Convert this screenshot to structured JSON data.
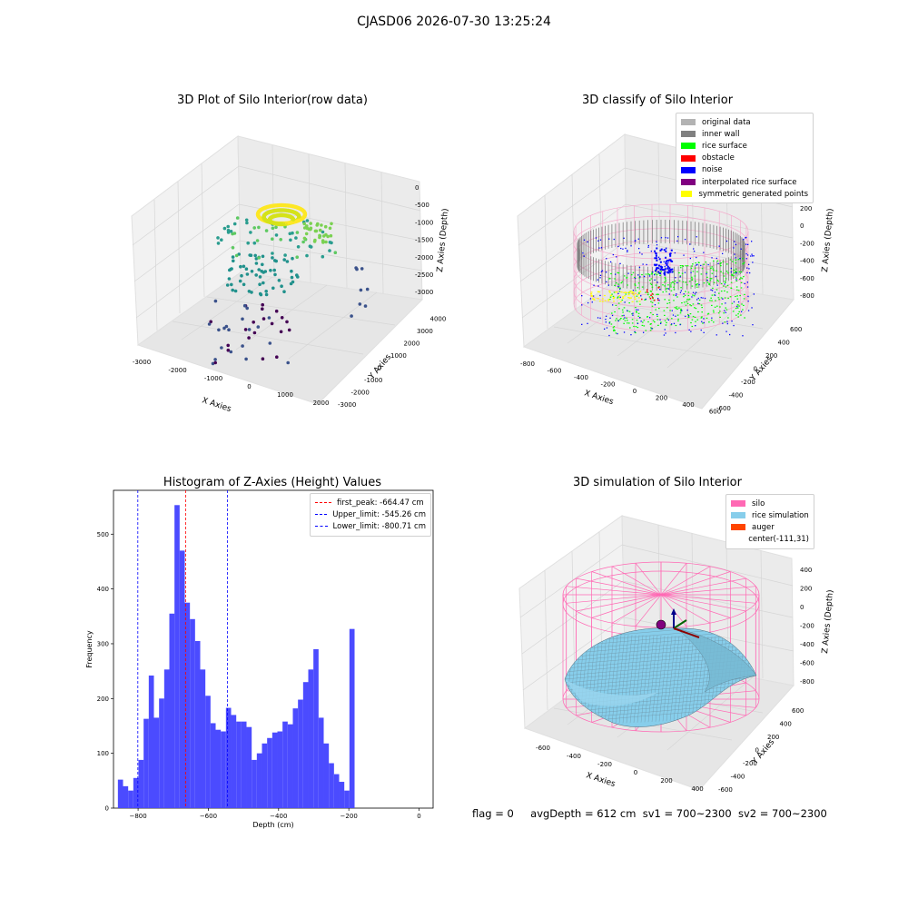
{
  "suptitle": "CJASD06 2026-07-30 13:25:24",
  "panels": {
    "raw": {
      "title": "3D Plot of Silo Interior(row data)",
      "xlabel": "X Axies",
      "ylabel": "Y Axies",
      "zlabel": "Z Axies (Depth)",
      "xticks": [
        "-3000",
        "-2000",
        "-1000",
        "0",
        "1000",
        "2000"
      ],
      "yticks": [
        "-3000",
        "-2000",
        "-1000",
        "0",
        "1000",
        "2000",
        "3000",
        "4000"
      ],
      "zticks": [
        "0",
        "-500",
        "-1000",
        "-1500",
        "-2000",
        "-2500",
        "-3000"
      ]
    },
    "classify": {
      "title": "3D classify of Silo Interior",
      "xlabel": "X Axies",
      "ylabel": "Y Axies",
      "zlabel": "Z Axies (Depth)",
      "xticks": [
        "-800",
        "-600",
        "-400",
        "-200",
        "0",
        "200",
        "400",
        "600"
      ],
      "yticks": [
        "-600",
        "-400",
        "-200",
        "0",
        "200",
        "400",
        "600"
      ],
      "zticks": [
        "200",
        "0",
        "-200",
        "-400",
        "-600",
        "-800"
      ],
      "legend": [
        {
          "label": "original data",
          "color": "#b3b3b3"
        },
        {
          "label": "inner wall",
          "color": "#808080"
        },
        {
          "label": "rice surface",
          "color": "#00ff00"
        },
        {
          "label": "obstacle",
          "color": "#ff0000"
        },
        {
          "label": "noise",
          "color": "#0000ff"
        },
        {
          "label": "interpolated rice surface",
          "color": "#800080"
        },
        {
          "label": "symmetric generated points",
          "color": "#ffff00"
        }
      ]
    },
    "histogram": {
      "title": "Histogram of Z-Axies (Height) Values",
      "legend": [
        {
          "label": "first_peak: -664.47 cm",
          "color": "#ff0000"
        },
        {
          "label": "Upper_limit: -545.26 cm",
          "color": "#0000ff"
        },
        {
          "label": "Lower_limit: -800.71 cm",
          "color": "#0000ff"
        }
      ]
    },
    "simulation": {
      "title": "3D simulation of Silo Interior",
      "xlabel": "X Axies",
      "ylabel": "Y Axies",
      "zlabel": "Z Axies (Depth)",
      "xticks": [
        "-600",
        "-400",
        "-200",
        "0",
        "200",
        "400"
      ],
      "yticks": [
        "-600",
        "-400",
        "-200",
        "0",
        "200",
        "400",
        "600"
      ],
      "zticks": [
        "400",
        "200",
        "0",
        "-200",
        "-400",
        "-600",
        "-800"
      ],
      "legend": [
        {
          "label": "silo",
          "color": "#ff69b4"
        },
        {
          "label": "rice simulation",
          "color": "#87ceeb"
        },
        {
          "label": "auger",
          "color": "#ff4500"
        },
        {
          "label": "center(-111,31)",
          "color": ""
        }
      ]
    }
  },
  "footer": {
    "flag": "flag = 0",
    "avg_depth": "avgDepth = 612 cm",
    "sv1": "sv1 = 700~2300",
    "sv2": "sv2 = 700~2300"
  },
  "chart_data": [
    {
      "type": "bar",
      "title": "Histogram of Z-Axies (Height) Values",
      "xlabel": "Depth (cm)",
      "ylabel": "Frequency",
      "xlim": [
        -870,
        40
      ],
      "ylim": [
        0,
        580
      ],
      "xticks": [
        -800,
        -600,
        -400,
        -200,
        0
      ],
      "yticks": [
        0,
        100,
        200,
        300,
        400,
        500
      ],
      "bar_color": "#4b4bff",
      "bin_width": 14.65,
      "bin_start": -857.5,
      "values": [
        52,
        40,
        32,
        55,
        88,
        163,
        242,
        165,
        200,
        253,
        355,
        553,
        470,
        375,
        345,
        305,
        253,
        205,
        155,
        143,
        140,
        183,
        170,
        158,
        158,
        148,
        88,
        100,
        118,
        128,
        138,
        140,
        158,
        153,
        182,
        198,
        230,
        253,
        290,
        165,
        118,
        82,
        62,
        48,
        32,
        327
      ],
      "vlines": [
        {
          "label": "first_peak: -664.47 cm",
          "x": -664.47,
          "color": "#ff0000"
        },
        {
          "label": "Upper_limit: -545.26 cm",
          "x": -545.26,
          "color": "#0000ff"
        },
        {
          "label": "Lower_limit: -800.71 cm",
          "x": -800.71,
          "color": "#0000ff"
        }
      ],
      "grid": false,
      "legend_position": "top-right"
    }
  ]
}
